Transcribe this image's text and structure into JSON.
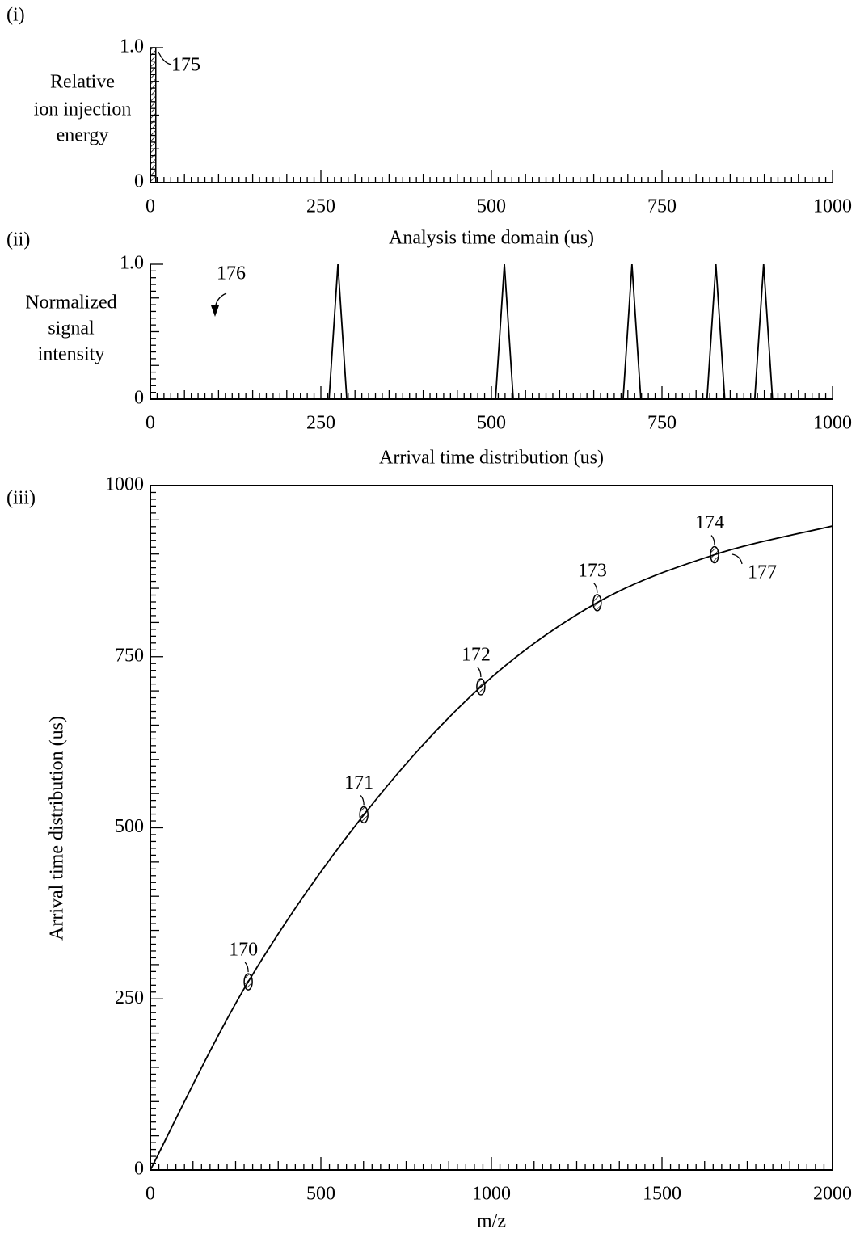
{
  "chart_data": [
    {
      "type": "histogram",
      "panel": "(i)",
      "ylabel": [
        "Relative",
        "ion injection",
        "energy"
      ],
      "xlabel": "Analysis time domain (us)",
      "annotation": "175",
      "bins": [
        0,
        8
      ],
      "values": [
        1
      ],
      "xlim": [
        0,
        1000
      ],
      "ylim": [
        0,
        1
      ],
      "xticks": [
        0,
        250,
        500,
        750,
        1000
      ],
      "yticks": [
        0,
        {
          "value": 1,
          "label": "1.0"
        }
      ],
      "minor_ticks": true,
      "frame": false,
      "color": "#000000"
    },
    {
      "type": "line",
      "panel": "(ii)",
      "ylabel": [
        "Normalized",
        "signal",
        "intensity"
      ],
      "xlabel": "Arrival time distribution (us)",
      "annotation": "176",
      "x": [
        0,
        262,
        275,
        288,
        506,
        519,
        532,
        693,
        706,
        719,
        816,
        829,
        842,
        886,
        899,
        912,
        1000
      ],
      "values": [
        0,
        0,
        1,
        0,
        0,
        1,
        0,
        0,
        1,
        0,
        0,
        1,
        0,
        0,
        1,
        0,
        0
      ],
      "xlim": [
        0,
        1000
      ],
      "ylim": [
        0,
        1
      ],
      "xticks": [
        0,
        250,
        500,
        750,
        1000
      ],
      "yticks": [
        0,
        {
          "value": 1,
          "label": "1.0"
        }
      ],
      "minor_ticks": true,
      "frame": false,
      "color": "#000000"
    },
    {
      "type": "scatter",
      "panel": "(iii)",
      "ylabel": "Arrival time distribution (us)",
      "xlabel": "m/z",
      "x": [
        287,
        626,
        969,
        1310,
        1654
      ],
      "values": [
        275,
        519,
        706,
        829,
        899
      ],
      "point_labels": [
        "170",
        "171",
        "172",
        "173",
        "174"
      ],
      "curve": {
        "x": [
          0,
          287,
          626,
          969,
          1310,
          1654,
          2000
        ],
        "values": [
          0,
          275,
          519,
          706,
          829,
          899,
          941
        ]
      },
      "curve_label": "177",
      "xlim": [
        0,
        2000
      ],
      "ylim": [
        0,
        1000
      ],
      "xticks": [
        0,
        500,
        1000,
        1500,
        2000
      ],
      "yticks": [
        0,
        250,
        500,
        750,
        1000
      ],
      "minor_ticks": true,
      "frame": true,
      "color": "#000000"
    }
  ]
}
